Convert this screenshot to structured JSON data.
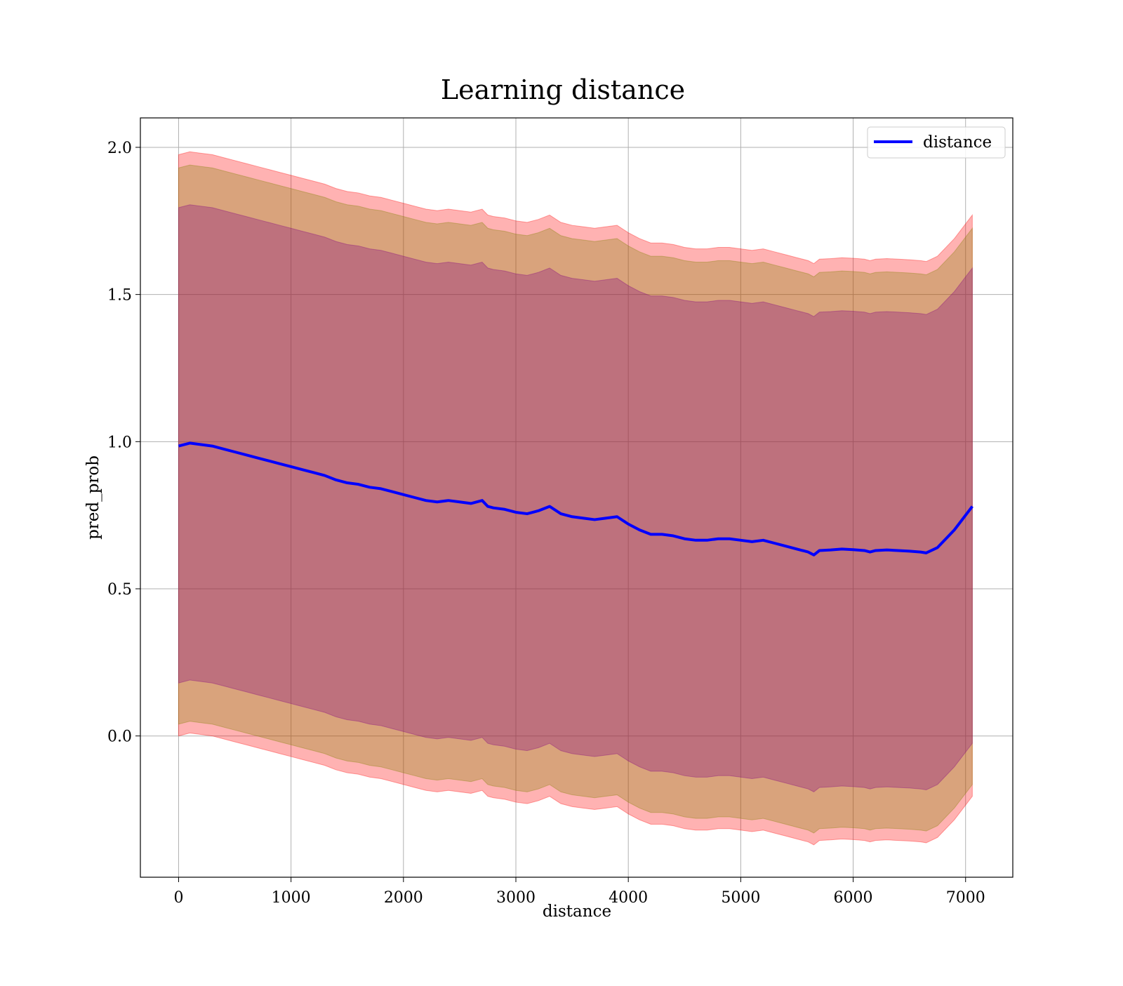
{
  "chart_data": {
    "type": "line",
    "title": "Learning distance",
    "xlabel": "distance",
    "ylabel": "pred_prob",
    "xlim": [
      -340,
      7420
    ],
    "ylim": [
      -0.48,
      2.1
    ],
    "grid": true,
    "legend_placement": "top-right",
    "x_ticks": [
      0,
      1000,
      2000,
      3000,
      4000,
      5000,
      6000,
      7000
    ],
    "x_tick_labels": [
      "0",
      "1000",
      "2000",
      "3000",
      "4000",
      "5000",
      "6000",
      "7000"
    ],
    "y_ticks": [
      0.0,
      0.5,
      1.0,
      1.5,
      2.0
    ],
    "y_tick_labels": [
      "0.0",
      "0.5",
      "1.0",
      "1.5",
      "2.0"
    ],
    "series": [
      {
        "name": "distance",
        "color": "#0000ff",
        "x": [
          0,
          100,
          200,
          300,
          400,
          500,
          600,
          700,
          800,
          900,
          1000,
          1100,
          1200,
          1300,
          1400,
          1500,
          1600,
          1700,
          1800,
          1900,
          2000,
          2100,
          2200,
          2300,
          2400,
          2500,
          2600,
          2700,
          2750,
          2800,
          2900,
          3000,
          3100,
          3200,
          3300,
          3400,
          3500,
          3600,
          3700,
          3800,
          3900,
          4000,
          4100,
          4200,
          4300,
          4400,
          4500,
          4600,
          4700,
          4800,
          4900,
          5000,
          5100,
          5200,
          5300,
          5400,
          5500,
          5600,
          5650,
          5700,
          5800,
          5900,
          6000,
          6100,
          6150,
          6200,
          6300,
          6400,
          6500,
          6600,
          6650,
          6750,
          6900,
          7060
        ],
        "y": [
          0.985,
          0.995,
          0.99,
          0.985,
          0.975,
          0.965,
          0.955,
          0.945,
          0.935,
          0.925,
          0.915,
          0.905,
          0.895,
          0.885,
          0.87,
          0.86,
          0.855,
          0.845,
          0.84,
          0.83,
          0.82,
          0.81,
          0.8,
          0.795,
          0.8,
          0.795,
          0.79,
          0.8,
          0.78,
          0.775,
          0.77,
          0.76,
          0.755,
          0.765,
          0.78,
          0.755,
          0.745,
          0.74,
          0.735,
          0.74,
          0.745,
          0.72,
          0.7,
          0.685,
          0.685,
          0.68,
          0.67,
          0.665,
          0.665,
          0.67,
          0.67,
          0.665,
          0.66,
          0.665,
          0.655,
          0.645,
          0.635,
          0.625,
          0.615,
          0.63,
          0.632,
          0.635,
          0.633,
          0.63,
          0.625,
          0.63,
          0.632,
          0.63,
          0.628,
          0.625,
          0.622,
          0.64,
          0.7,
          0.78
        ]
      }
    ],
    "bands": [
      {
        "color": "#ff0000",
        "opacity": 0.3,
        "offset_upper": 0.99,
        "offset_lower": 0.985
      },
      {
        "color": "#808000",
        "opacity": 0.3,
        "offset_upper": 0.945,
        "offset_lower": 0.945
      },
      {
        "color": "#800080",
        "opacity": 0.3,
        "offset_upper": 0.81,
        "offset_lower": 0.805
      }
    ]
  }
}
